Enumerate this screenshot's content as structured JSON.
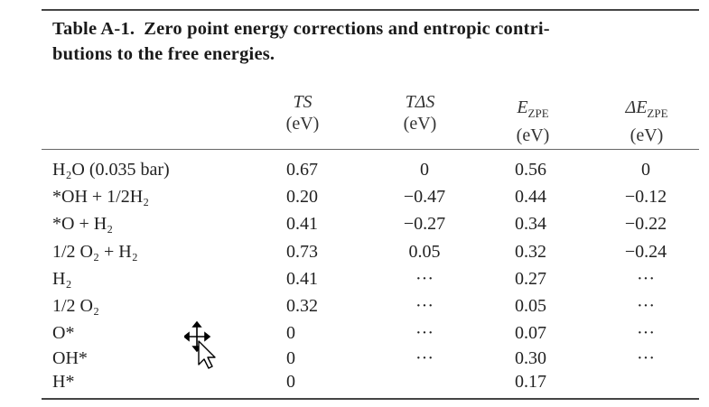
{
  "caption": {
    "label": "Table A-1.",
    "text_line1": "Zero point energy corrections and entropic contri-",
    "text_line2": "butions to the free energies."
  },
  "columns": {
    "ts": {
      "symbol": "TS",
      "unit": "(eV)"
    },
    "tds": {
      "symbol": "TΔS",
      "unit": "(eV)"
    },
    "ezpe": {
      "symbol": "E",
      "sub": "ZPE",
      "unit": "(eV)"
    },
    "dezpe": {
      "symbol": "ΔE",
      "sub": "ZPE",
      "unit": "(eV)"
    }
  },
  "rows": [
    {
      "species": "H₂O (0.035 bar)",
      "ts": "0.67",
      "tds": "0",
      "ezpe": "0.56",
      "dezpe": "0"
    },
    {
      "species": "*OH + 1/2H₂",
      "ts": "0.20",
      "tds": "−0.47",
      "ezpe": "0.44",
      "dezpe": "−0.12"
    },
    {
      "species": "*O + H₂",
      "ts": "0.41",
      "tds": "−0.27",
      "ezpe": "0.34",
      "dezpe": "−0.22"
    },
    {
      "species": "1/2 O₂ + H₂",
      "ts": "0.73",
      "tds": "0.05",
      "ezpe": "0.32",
      "dezpe": "−0.24"
    },
    {
      "species": "H₂",
      "ts": "0.41",
      "tds": "···",
      "ezpe": "0.27",
      "dezpe": "···"
    },
    {
      "species": "1/2 O₂",
      "ts": "0.32",
      "tds": "···",
      "ezpe": "0.05",
      "dezpe": "···"
    },
    {
      "species": "O*",
      "ts": "0",
      "tds": "···",
      "ezpe": "0.07",
      "dezpe": "···"
    },
    {
      "species": "OH*",
      "ts": "0",
      "tds": "···",
      "ezpe": "0.30",
      "dezpe": "···"
    },
    {
      "species": "H*",
      "ts": "0",
      "tds": "",
      "ezpe": "0.17",
      "dezpe": ""
    }
  ],
  "cursor_icon": "move-cursor-icon"
}
